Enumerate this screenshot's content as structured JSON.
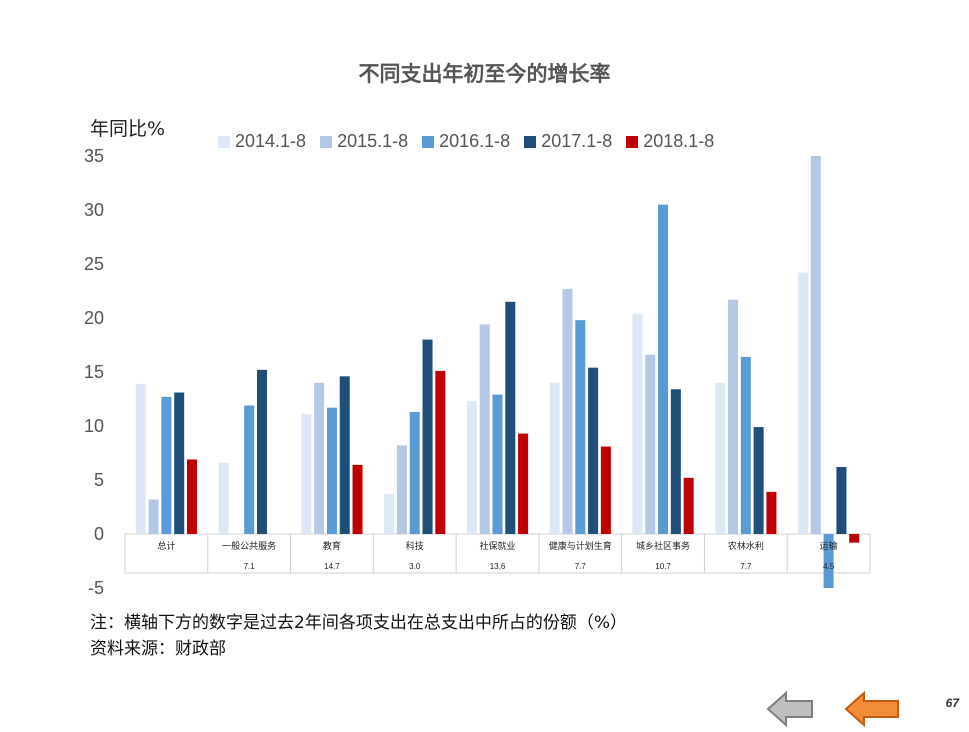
{
  "page": {
    "number": "67"
  },
  "nav": {
    "prev_icon": "arrow-left-grey-icon",
    "next_icon": "arrow-left-orange-icon"
  },
  "notes": {
    "line1": "注：横轴下方的数字是过去2年间各项支出在总支出中所占的份额（%）",
    "line2": "资料来源：财政部"
  },
  "chart_data": {
    "type": "bar",
    "title": "不同支出年初至今的增长率",
    "ylabel": "年同比%",
    "ylim": [
      -5,
      35
    ],
    "yticks": [
      -5,
      0,
      5,
      10,
      15,
      20,
      25,
      30,
      35
    ],
    "legend_position": "top",
    "categories": [
      "总计",
      "一般公共服务",
      "教育",
      "科技",
      "社保就业",
      "健康与计划生育",
      "城乡社区事务",
      "农林水利",
      "运输"
    ],
    "shares": [
      "",
      "7.1",
      "14.7",
      "3.0",
      "13.6",
      "7.7",
      "10.7",
      "7.7",
      "4.5"
    ],
    "series": [
      {
        "name": "2014.1-8",
        "color": "#dce8f6",
        "values": [
          13.9,
          6.6,
          11.1,
          3.7,
          12.3,
          14.0,
          20.4,
          14.0,
          24.2
        ]
      },
      {
        "name": "2015.1-8",
        "color": "#b4c8e6",
        "values": [
          3.2,
          null,
          14.0,
          8.2,
          19.4,
          22.7,
          16.6,
          21.7,
          35.0
        ]
      },
      {
        "name": "2016.1-8",
        "color": "#5b9bd5",
        "values": [
          12.7,
          11.9,
          11.7,
          11.3,
          12.9,
          19.8,
          30.5,
          16.4,
          -5.0
        ]
      },
      {
        "name": "2017.1-8",
        "color": "#1f4e79",
        "values": [
          13.1,
          15.2,
          14.6,
          18.0,
          21.5,
          15.4,
          13.4,
          9.9,
          6.2
        ]
      },
      {
        "name": "2018.1-8",
        "color": "#c00000",
        "values": [
          6.9,
          null,
          6.4,
          15.1,
          9.3,
          8.1,
          5.2,
          3.9,
          -0.8
        ]
      }
    ]
  }
}
